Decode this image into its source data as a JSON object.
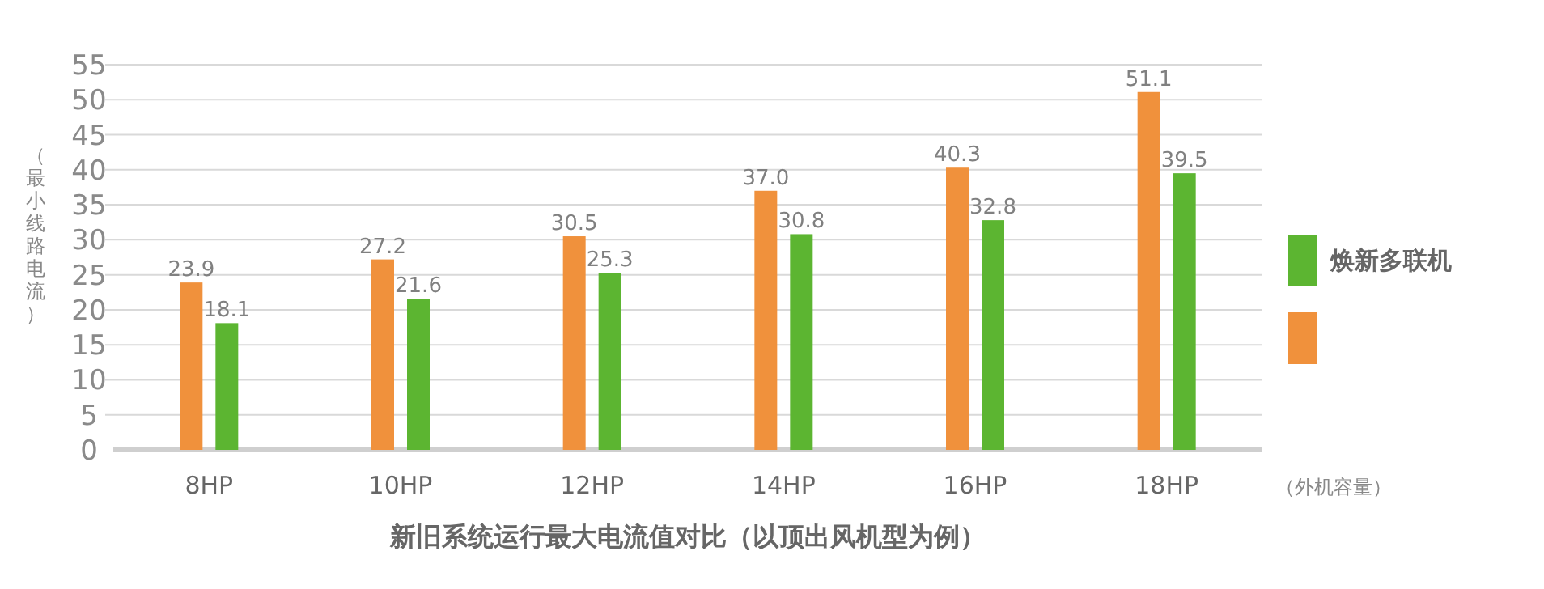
{
  "chart_data": {
    "type": "bar",
    "title": "新旧系统运行最大电流值对比（以顶出风机型为例）",
    "xlabel": "（外机容量）",
    "ylabel": "（最小线路电流）",
    "categories": [
      "8HP",
      "10HP",
      "12HP",
      "14HP",
      "16HP",
      "18HP"
    ],
    "series": [
      {
        "color": "#f0913c",
        "values": [
          23.9,
          27.2,
          30.5,
          37.0,
          40.3,
          51.1
        ],
        "value_labels": [
          "23.9",
          "27.2",
          "30.5",
          "37.0",
          "40.3",
          "51.1"
        ]
      },
      {
        "name": "焕新多联机",
        "color": "#5cb531",
        "values": [
          18.1,
          21.6,
          25.3,
          30.8,
          32.8,
          39.5
        ],
        "value_labels": [
          "18.1",
          "21.6",
          "25.3",
          "30.8",
          "32.8",
          "39.5"
        ]
      }
    ],
    "ylim": [
      0,
      55
    ],
    "yticks": [
      0,
      5,
      10,
      15,
      20,
      25,
      30,
      35,
      40,
      45,
      50,
      55
    ],
    "grid": "y",
    "legend": "right"
  }
}
